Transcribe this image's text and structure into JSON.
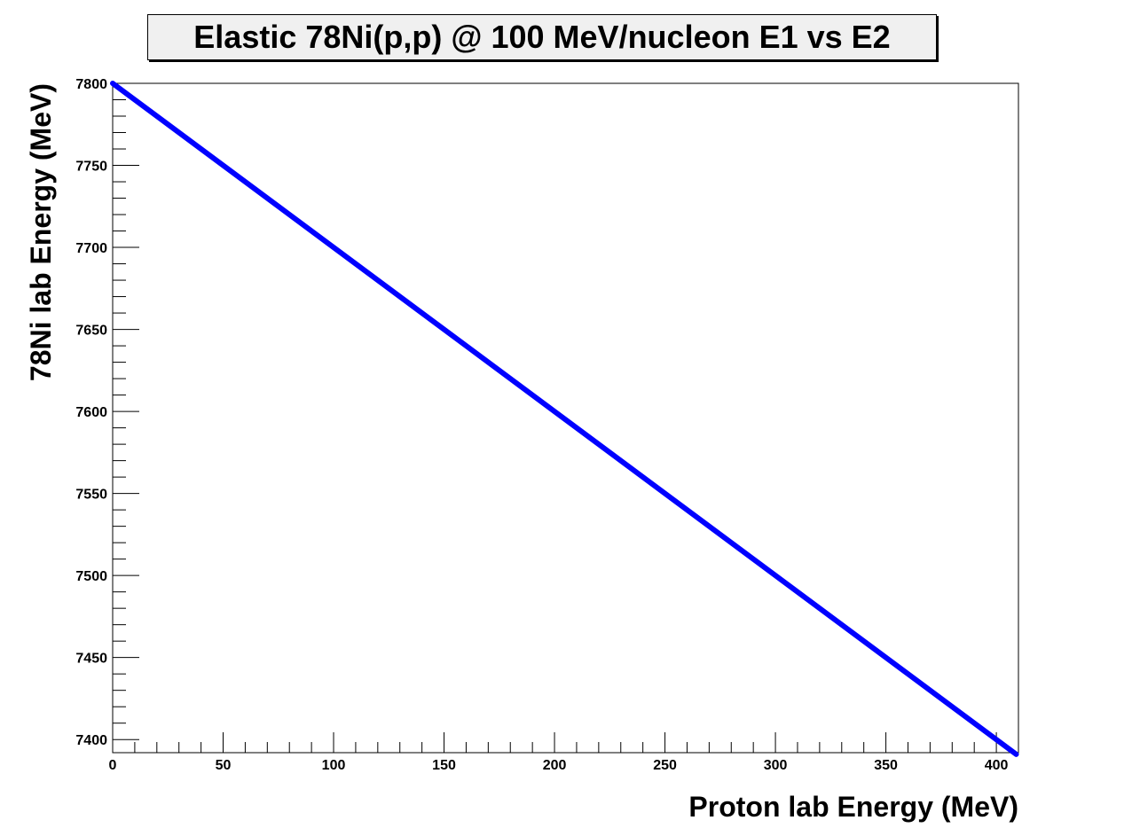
{
  "chart_data": {
    "type": "line",
    "title": "Elastic 78Ni(p,p) @ 100 MeV/nucleon E1 vs E2",
    "xlabel": "Proton lab Energy (MeV)",
    "ylabel": "78Ni lab Energy (MeV)",
    "xlim": [
      0,
      410
    ],
    "ylim": [
      7392,
      7800
    ],
    "x_ticks": [
      0,
      50,
      100,
      150,
      200,
      250,
      300,
      350,
      400
    ],
    "y_ticks": [
      7400,
      7450,
      7500,
      7550,
      7600,
      7650,
      7700,
      7750,
      7800
    ],
    "x_minor_step": 10,
    "y_minor_step": 10,
    "grid": false,
    "series": [
      {
        "color": "#0000ff",
        "x": [
          0,
          409
        ],
        "y": [
          7800,
          7391
        ]
      }
    ]
  }
}
